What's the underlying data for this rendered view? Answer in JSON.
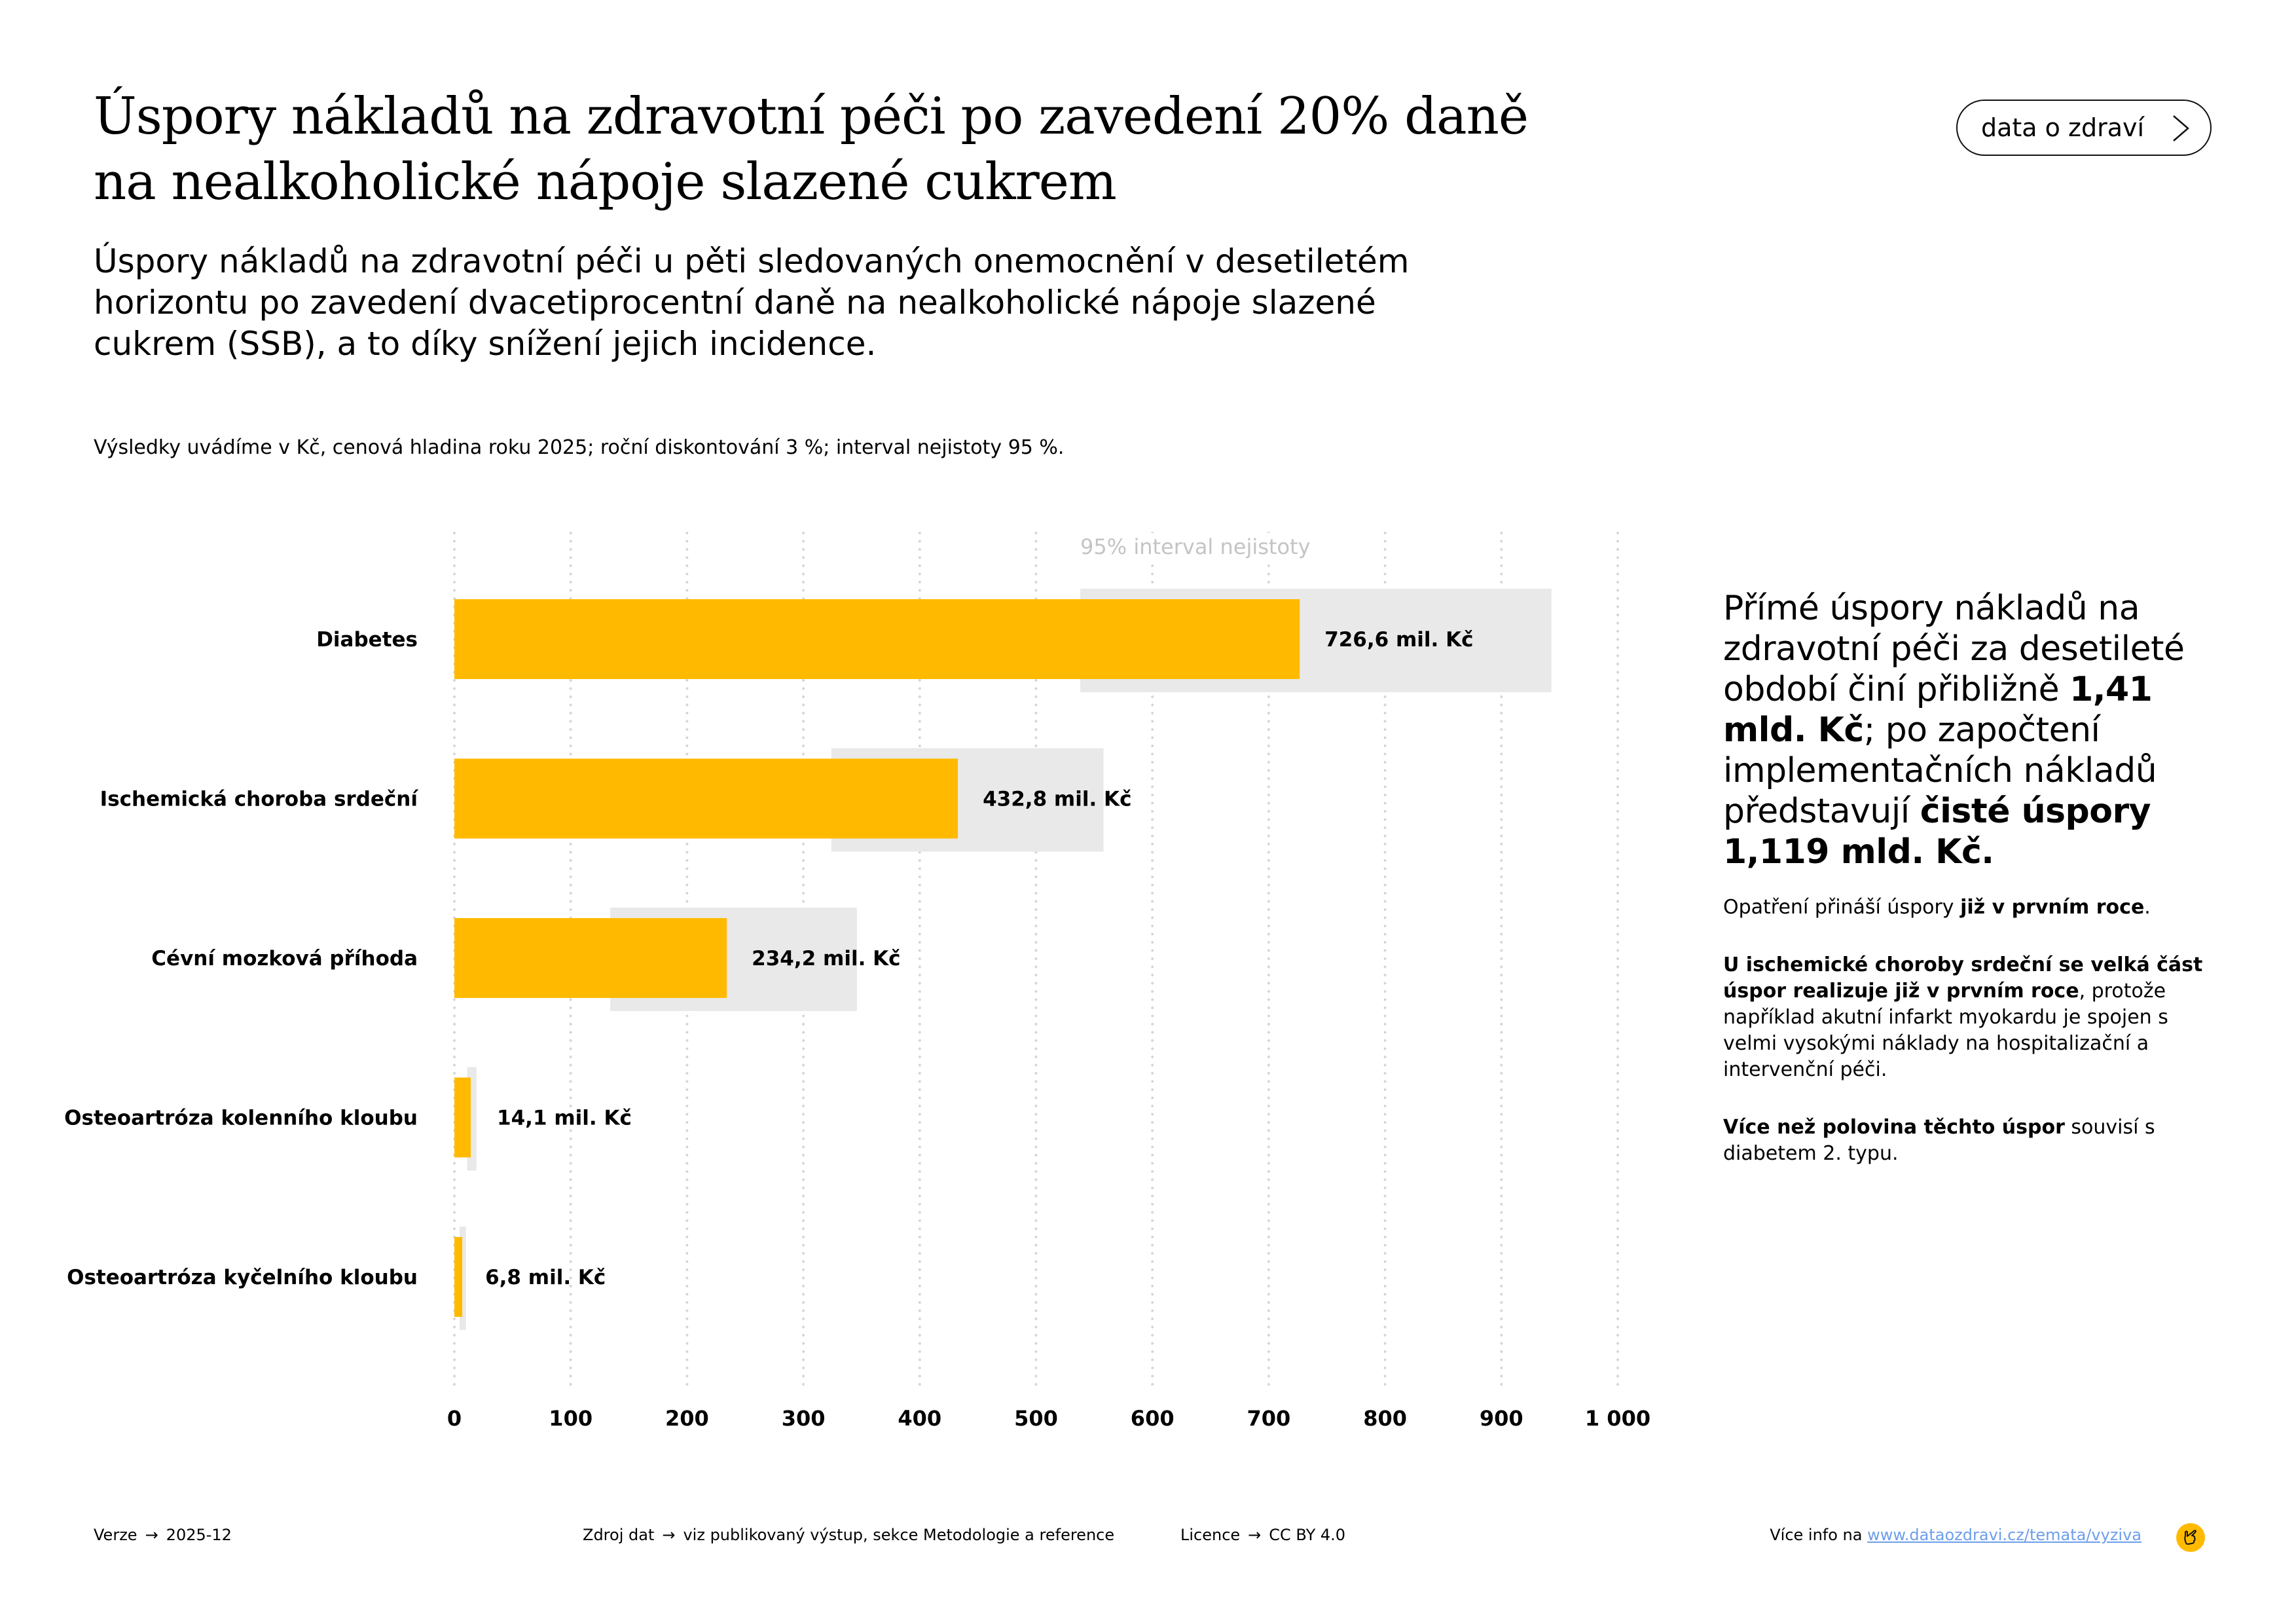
{
  "header": {
    "title_lines": [
      "Úspory nákladů na zdravotní péči po zavedení 20% daně",
      "na nealkoholické nápoje slazené cukrem"
    ],
    "subtitle_lines": [
      "Úspory nákladů na zdravotní péči u pěti sledovaných onemocnění v desetiletém",
      "horizontu po zavedení dvacetiprocentní daně na nealkoholické nápoje slazené",
      "cukrem (SSB), a to díky snížení jejich incidence."
    ],
    "note": "Výsledky uvádíme v Kč, cenová hladina roku 2025; roční diskontování 3 %; interval nejistoty 95 %.",
    "cta_label": "data o zdraví",
    "cta_icon": "chevron-right-icon"
  },
  "chart_data": {
    "type": "bar",
    "orientation": "horizontal",
    "title": "Úspory nákladů na zdravotní péči po zavedení 20% daně na nealkoholické nápoje slazené cukrem",
    "xlabel": "",
    "ylabel": "",
    "unit": "mil. Kč",
    "xlim": [
      0,
      1000
    ],
    "xticks": [
      0,
      100,
      200,
      300,
      400,
      500,
      600,
      700,
      800,
      900,
      1000
    ],
    "xtick_labels": [
      "0",
      "100",
      "200",
      "300",
      "400",
      "500",
      "600",
      "700",
      "800",
      "900",
      "1 000"
    ],
    "grid": "vertical-dotted",
    "legend": {
      "label": "95% interval nejistoty",
      "placement": "top"
    },
    "categories": [
      "Diabetes",
      "Ischemická choroba srdeční",
      "Cévní mozková příhoda",
      "Osteoartróza kolenního kloubu",
      "Osteoartróza kyčelního kloubu"
    ],
    "values": [
      726.6,
      432.8,
      234.2,
      14.1,
      6.8
    ],
    "value_labels": [
      "726,6 mil. Kč",
      "432,8 mil. Kč",
      "234,2 mil. Kč",
      "14,1 mil. Kč",
      "6,8 mil. Kč"
    ],
    "ci_low": [
      538,
      324,
      134,
      11,
      4.5
    ],
    "ci_high": [
      943,
      558,
      346,
      19,
      10
    ],
    "colors": {
      "bar": "#ffba00",
      "ci": "#e9e9e9",
      "grid": "#d6d6d6",
      "legend_text": "#c4c4c4"
    }
  },
  "side_panel": {
    "lead_parts": [
      {
        "text": "Přímé úspory nákladů na zdravotní péči za desetileté období činí přibližně ",
        "bold": false
      },
      {
        "text": "1,41 mld. Kč",
        "bold": true
      },
      {
        "text": "; po započtení implementačních nákladů představují ",
        "bold": false
      },
      {
        "text": "čisté úspory 1,119 mld. Kč.",
        "bold": true
      }
    ],
    "paragraphs": [
      [
        {
          "text": "Opatření přináší úspory ",
          "bold": false
        },
        {
          "text": "již v prvním roce",
          "bold": true
        },
        {
          "text": ".",
          "bold": false
        }
      ],
      [
        {
          "text": "U ischemické choroby srdeční se velká část úspor realizuje již v prvním roce",
          "bold": true
        },
        {
          "text": ", protože například akutní infarkt myokardu je spojen s velmi vysokými náklady na hospitalizační a intervenční péči.",
          "bold": false
        }
      ],
      [
        {
          "text": "Více než polovina těchto úspor",
          "bold": true
        },
        {
          "text": " souvisí s diabetem 2. typu.",
          "bold": false
        }
      ]
    ]
  },
  "footer": {
    "version_label": "Verze",
    "version_value": "2025-12",
    "source_label": "Zdroj dat",
    "source_value": "viz publikovaný výstup, sekce Metodologie a reference",
    "license_label": "Licence",
    "license_value": "CC BY 4.0",
    "more_info_label": "Více info na",
    "more_info_link": "www.dataozdravi.cz/temata/vyziva",
    "arrow_glyph": "→",
    "logo_icon": "hand-pointing-icon"
  }
}
